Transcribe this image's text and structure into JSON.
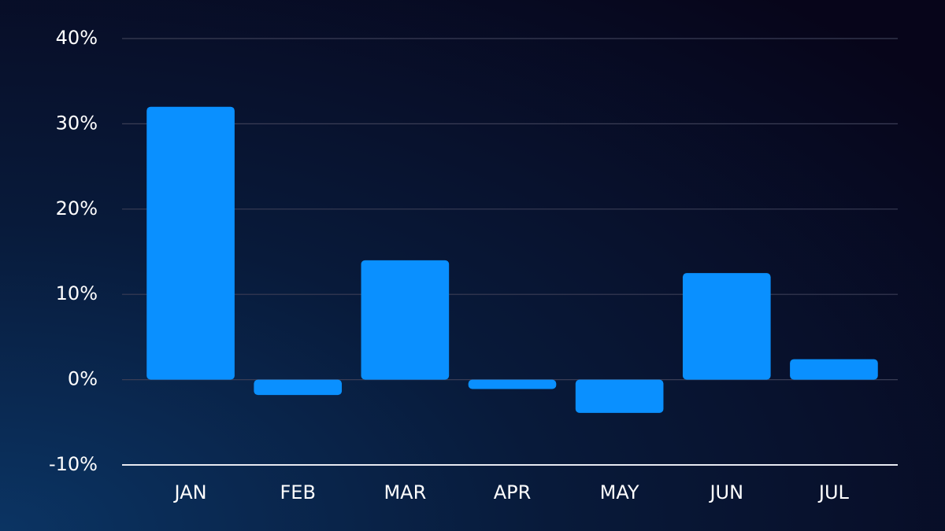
{
  "chart_data": {
    "type": "bar",
    "categories": [
      "JAN",
      "FEB",
      "MAR",
      "APR",
      "MAY",
      "JUN",
      "JUL"
    ],
    "values": [
      32.0,
      -1.8,
      14.0,
      -1.1,
      -3.9,
      12.5,
      2.4
    ],
    "color": "#0a90ff",
    "ylim": [
      -10,
      40
    ],
    "yticks": [
      {
        "value": -10,
        "label": "-10%"
      },
      {
        "value": 0,
        "label": "0%"
      },
      {
        "value": 10,
        "label": "10%"
      },
      {
        "value": 20,
        "label": "20%"
      },
      {
        "value": 30,
        "label": "30%"
      },
      {
        "value": 40,
        "label": "40%"
      }
    ],
    "grid": true
  }
}
